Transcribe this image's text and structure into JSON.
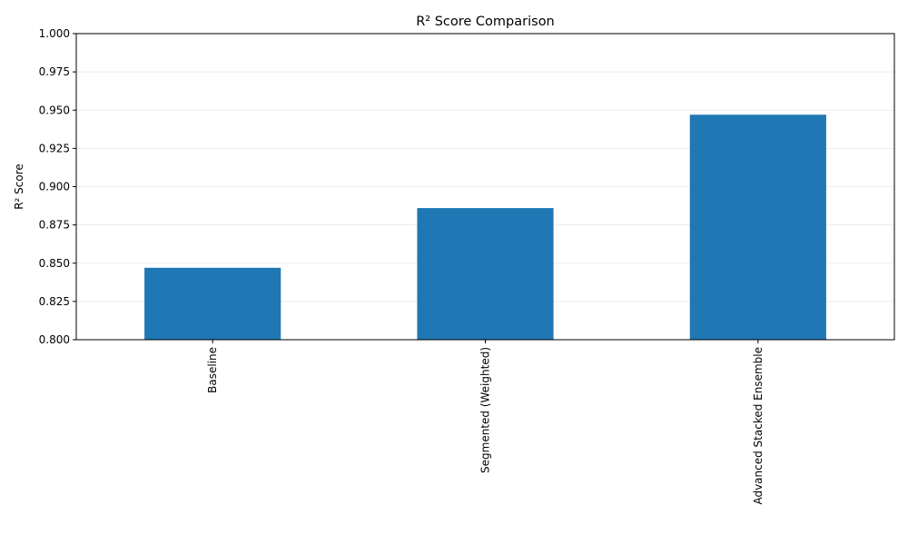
{
  "chart_data": {
    "type": "bar",
    "title": "R² Score Comparison",
    "xlabel": "",
    "ylabel": "R² Score",
    "categories": [
      "Baseline",
      "Segmented (Weighted)",
      "Advanced Stacked Ensemble"
    ],
    "values": [
      0.847,
      0.886,
      0.947
    ],
    "ylim": [
      0.8,
      1.0
    ],
    "yticks": [
      "0.800",
      "0.825",
      "0.850",
      "0.875",
      "0.900",
      "0.925",
      "0.950",
      "0.975",
      "1.000"
    ],
    "grid": "y",
    "legend": "none",
    "bar_color": "#1f77b4",
    "grid_color": "#e6e6e6"
  }
}
